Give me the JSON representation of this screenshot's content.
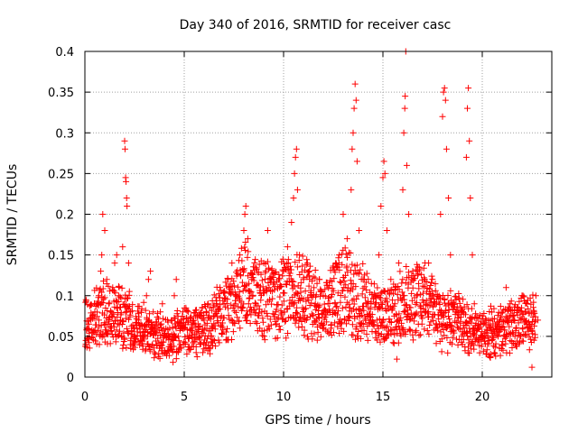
{
  "chart_data": {
    "type": "scatter",
    "title": "Day 340 of 2016, SRMTID for receiver casc",
    "xlabel": "GPS time / hours",
    "ylabel": "SRMTID / TECUs",
    "xlim": [
      0,
      23.5
    ],
    "ylim": [
      0,
      0.4
    ],
    "xticks": [
      0,
      5,
      10,
      15,
      20
    ],
    "xtick_labels": [
      "0",
      "5",
      "10",
      "15",
      "20"
    ],
    "yticks": [
      0,
      0.05,
      0.1,
      0.15,
      0.2,
      0.25,
      0.3,
      0.35,
      0.4
    ],
    "ytick_labels": [
      "0",
      "0.05",
      "0.1",
      "0.15",
      "0.2",
      "0.25",
      "0.3",
      "0.35",
      "0.4"
    ],
    "grid": true,
    "marker": "+",
    "series": [
      {
        "name": "SRMTID",
        "color": "#ff0000",
        "baseline_profile": {
          "x": [
            0,
            1,
            2,
            3,
            4,
            5,
            6,
            7,
            8,
            9,
            10,
            11,
            12,
            13,
            14,
            15,
            16,
            17,
            18,
            19,
            20,
            21,
            22,
            22.7
          ],
          "y": [
            0.06,
            0.085,
            0.07,
            0.06,
            0.045,
            0.055,
            0.06,
            0.08,
            0.11,
            0.09,
            0.1,
            0.1,
            0.08,
            0.11,
            0.09,
            0.07,
            0.09,
            0.1,
            0.07,
            0.065,
            0.055,
            0.055,
            0.07,
            0.065
          ]
        },
        "points": [
          [
            0.05,
            0.045
          ],
          [
            0.1,
            0.06
          ],
          [
            0.2,
            0.065
          ],
          [
            0.3,
            0.07
          ],
          [
            0.4,
            0.055
          ],
          [
            0.5,
            0.08
          ],
          [
            0.6,
            0.09
          ],
          [
            0.7,
            0.1
          ],
          [
            0.8,
            0.13
          ],
          [
            0.85,
            0.15
          ],
          [
            0.9,
            0.2
          ],
          [
            1.0,
            0.18
          ],
          [
            1.1,
            0.12
          ],
          [
            1.2,
            0.09
          ],
          [
            1.3,
            0.06
          ],
          [
            1.4,
            0.11
          ],
          [
            1.5,
            0.14
          ],
          [
            1.6,
            0.15
          ],
          [
            1.7,
            0.1
          ],
          [
            1.8,
            0.07
          ],
          [
            1.9,
            0.16
          ],
          [
            2.0,
            0.29
          ],
          [
            2.02,
            0.28
          ],
          [
            2.05,
            0.245
          ],
          [
            2.07,
            0.24
          ],
          [
            2.1,
            0.22
          ],
          [
            2.12,
            0.21
          ],
          [
            2.2,
            0.14
          ],
          [
            2.3,
            0.08
          ],
          [
            2.5,
            0.06
          ],
          [
            2.7,
            0.07
          ],
          [
            2.9,
            0.05
          ],
          [
            3.1,
            0.1
          ],
          [
            3.2,
            0.12
          ],
          [
            3.3,
            0.13
          ],
          [
            3.4,
            0.04
          ],
          [
            3.5,
            0.03
          ],
          [
            3.6,
            0.055
          ],
          [
            3.8,
            0.08
          ],
          [
            3.9,
            0.09
          ],
          [
            4.0,
            0.03
          ],
          [
            4.2,
            0.05
          ],
          [
            4.4,
            0.07
          ],
          [
            4.5,
            0.1
          ],
          [
            4.6,
            0.12
          ],
          [
            4.7,
            0.05
          ],
          [
            4.8,
            0.04
          ],
          [
            5.0,
            0.06
          ],
          [
            5.2,
            0.08
          ],
          [
            5.4,
            0.06
          ],
          [
            5.6,
            0.03
          ],
          [
            5.8,
            0.05
          ],
          [
            6.0,
            0.07
          ],
          [
            6.2,
            0.09
          ],
          [
            6.4,
            0.06
          ],
          [
            6.6,
            0.08
          ],
          [
            6.8,
            0.11
          ],
          [
            7.0,
            0.09
          ],
          [
            7.2,
            0.12
          ],
          [
            7.4,
            0.14
          ],
          [
            7.6,
            0.1
          ],
          [
            7.8,
            0.15
          ],
          [
            8.0,
            0.18
          ],
          [
            8.05,
            0.2
          ],
          [
            8.1,
            0.21
          ],
          [
            8.2,
            0.17
          ],
          [
            8.4,
            0.12
          ],
          [
            8.6,
            0.09
          ],
          [
            8.8,
            0.06
          ],
          [
            9.0,
            0.14
          ],
          [
            9.2,
            0.18
          ],
          [
            9.4,
            0.12
          ],
          [
            9.6,
            0.08
          ],
          [
            9.8,
            0.11
          ],
          [
            10.0,
            0.13
          ],
          [
            10.2,
            0.16
          ],
          [
            10.4,
            0.19
          ],
          [
            10.5,
            0.22
          ],
          [
            10.55,
            0.25
          ],
          [
            10.6,
            0.27
          ],
          [
            10.65,
            0.28
          ],
          [
            10.7,
            0.23
          ],
          [
            10.8,
            0.15
          ],
          [
            11.0,
            0.12
          ],
          [
            11.2,
            0.14
          ],
          [
            11.4,
            0.1
          ],
          [
            11.6,
            0.09
          ],
          [
            11.8,
            0.12
          ],
          [
            12.0,
            0.1
          ],
          [
            12.2,
            0.08
          ],
          [
            12.4,
            0.06
          ],
          [
            12.6,
            0.09
          ],
          [
            12.8,
            0.15
          ],
          [
            13.0,
            0.2
          ],
          [
            13.2,
            0.17
          ],
          [
            13.4,
            0.23
          ],
          [
            13.45,
            0.28
          ],
          [
            13.5,
            0.3
          ],
          [
            13.55,
            0.33
          ],
          [
            13.6,
            0.36
          ],
          [
            13.65,
            0.34
          ],
          [
            13.7,
            0.265
          ],
          [
            13.8,
            0.18
          ],
          [
            14.0,
            0.12
          ],
          [
            14.2,
            0.09
          ],
          [
            14.4,
            0.07
          ],
          [
            14.6,
            0.1
          ],
          [
            14.8,
            0.15
          ],
          [
            14.9,
            0.21
          ],
          [
            15.0,
            0.245
          ],
          [
            15.05,
            0.265
          ],
          [
            15.1,
            0.25
          ],
          [
            15.2,
            0.18
          ],
          [
            15.4,
            0.12
          ],
          [
            15.6,
            0.09
          ],
          [
            15.7,
            0.022
          ],
          [
            15.8,
            0.14
          ],
          [
            16.0,
            0.23
          ],
          [
            16.05,
            0.3
          ],
          [
            16.1,
            0.33
          ],
          [
            16.12,
            0.345
          ],
          [
            16.15,
            0.4
          ],
          [
            16.2,
            0.26
          ],
          [
            16.3,
            0.2
          ],
          [
            16.5,
            0.13
          ],
          [
            16.7,
            0.1
          ],
          [
            16.9,
            0.08
          ],
          [
            17.1,
            0.12
          ],
          [
            17.3,
            0.14
          ],
          [
            17.5,
            0.1
          ],
          [
            17.7,
            0.09
          ],
          [
            17.9,
            0.2
          ],
          [
            18.0,
            0.32
          ],
          [
            18.05,
            0.35
          ],
          [
            18.1,
            0.355
          ],
          [
            18.15,
            0.34
          ],
          [
            18.2,
            0.28
          ],
          [
            18.3,
            0.22
          ],
          [
            18.4,
            0.15
          ],
          [
            18.6,
            0.09
          ],
          [
            18.8,
            0.06
          ],
          [
            19.0,
            0.08
          ],
          [
            19.2,
            0.27
          ],
          [
            19.25,
            0.33
          ],
          [
            19.3,
            0.355
          ],
          [
            19.35,
            0.29
          ],
          [
            19.4,
            0.22
          ],
          [
            19.5,
            0.15
          ],
          [
            19.6,
            0.09
          ],
          [
            19.8,
            0.06
          ],
          [
            20.0,
            0.05
          ],
          [
            20.2,
            0.07
          ],
          [
            20.4,
            0.06
          ],
          [
            20.6,
            0.03
          ],
          [
            20.8,
            0.05
          ],
          [
            21.0,
            0.07
          ],
          [
            21.2,
            0.11
          ],
          [
            21.4,
            0.09
          ],
          [
            21.6,
            0.07
          ],
          [
            21.8,
            0.085
          ],
          [
            22.0,
            0.1
          ],
          [
            22.2,
            0.08
          ],
          [
            22.4,
            0.06
          ],
          [
            22.5,
            0.012
          ],
          [
            22.6,
            0.08
          ],
          [
            22.7,
            0.1
          ],
          [
            22.8,
            0.07
          ]
        ]
      }
    ]
  }
}
